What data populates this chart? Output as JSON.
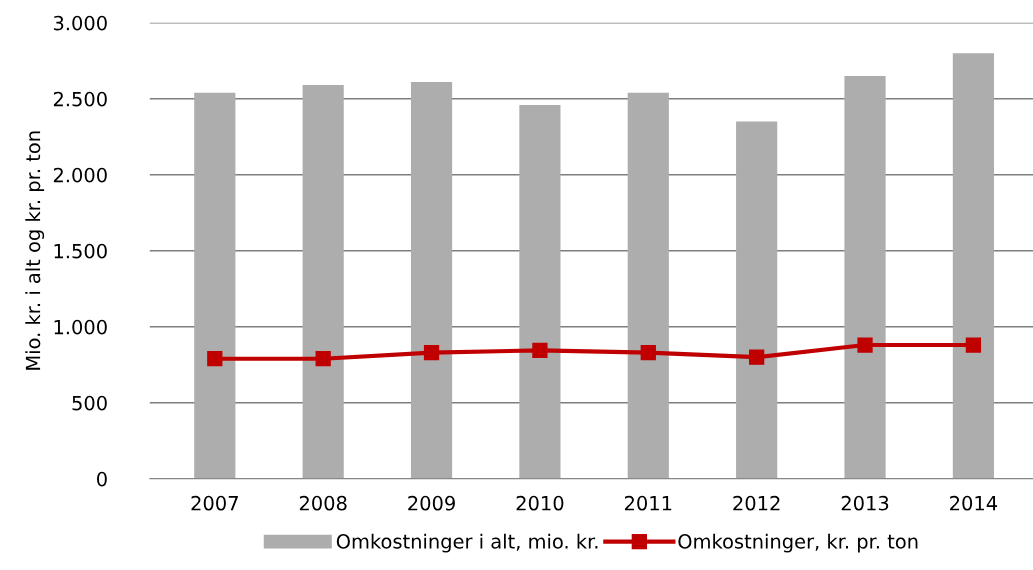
{
  "chart_data": {
    "type": "bar",
    "ylabel": "Mio. kr. i alt og kr. pr. ton",
    "categories": [
      "2007",
      "2008",
      "2009",
      "2010",
      "2011",
      "2012",
      "2013",
      "2014"
    ],
    "series": [
      {
        "name": "Omkostninger i alt, mio. kr.",
        "color": "#aeadad",
        "values": [
          2540,
          2590,
          2610,
          2460,
          2540,
          2350,
          2650,
          2800
        ]
      },
      {
        "name": "Omkostninger, kr. pr. ton",
        "type": "line",
        "color": "#c00000",
        "marker": "square",
        "values": [
          790,
          790,
          830,
          845,
          830,
          800,
          880,
          880
        ]
      }
    ],
    "ylim": [
      0,
      3000
    ],
    "yticks": [
      0,
      500,
      {
        "value": 1000,
        "label": "1.000"
      },
      {
        "value": 1500,
        "label": "1.500"
      },
      {
        "value": 2000,
        "label": "2.000"
      },
      {
        "value": 2500,
        "label": "2.500"
      },
      {
        "value": 3000,
        "label": "3.000"
      }
    ],
    "grid": "y",
    "legend": "bottom"
  }
}
